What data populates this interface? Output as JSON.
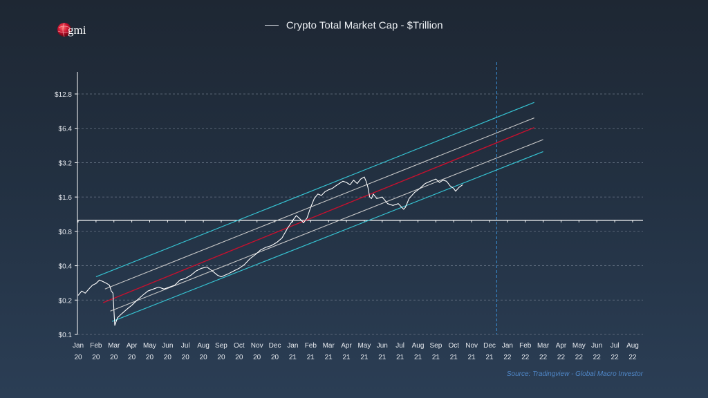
{
  "title": "Crypto Total Market Cap - $Trillion",
  "logo_text": "gmi",
  "source": "Source: Tradingview - Global Macro Investor",
  "colors": {
    "price": "#ffffff",
    "center": "#c8102e",
    "inner_band": "#c9c9c9",
    "outer_band": "#36c2d1",
    "projection_marker": "#3a8fd6",
    "grid": "#6b7788",
    "axis": "#ffffff"
  },
  "chart_data": {
    "type": "line",
    "title": "Crypto Total Market Cap - $Trillion",
    "xlabel": "",
    "ylabel": "",
    "y_scale": "log2",
    "ylim": [
      0.1,
      20
    ],
    "y_ticks": [
      {
        "value": 0.1,
        "label": "$0.1"
      },
      {
        "value": 0.2,
        "label": "$0.2"
      },
      {
        "value": 0.4,
        "label": "$0.4"
      },
      {
        "value": 0.8,
        "label": "$0.8"
      },
      {
        "value": 1.6,
        "label": "$1.6"
      },
      {
        "value": 3.2,
        "label": "$3.2"
      },
      {
        "value": 6.4,
        "label": "$6.4"
      },
      {
        "value": 12.8,
        "label": "$12.8"
      }
    ],
    "x_ticks": [
      [
        "Jan",
        "20"
      ],
      [
        "Feb",
        "20"
      ],
      [
        "Mar",
        "20"
      ],
      [
        "Apr",
        "20"
      ],
      [
        "May",
        "20"
      ],
      [
        "Jun",
        "20"
      ],
      [
        "Jul",
        "20"
      ],
      [
        "Aug",
        "20"
      ],
      [
        "Sep",
        "20"
      ],
      [
        "Oct",
        "20"
      ],
      [
        "Nov",
        "20"
      ],
      [
        "Dec",
        "20"
      ],
      [
        "Jan",
        "21"
      ],
      [
        "Feb",
        "21"
      ],
      [
        "Mar",
        "21"
      ],
      [
        "Apr",
        "21"
      ],
      [
        "May",
        "21"
      ],
      [
        "Jun",
        "21"
      ],
      [
        "Jul",
        "21"
      ],
      [
        "Aug",
        "21"
      ],
      [
        "Sep",
        "21"
      ],
      [
        "Oct",
        "21"
      ],
      [
        "Nov",
        "21"
      ],
      [
        "Dec",
        "21"
      ],
      [
        "Jan",
        "22"
      ],
      [
        "Feb",
        "22"
      ],
      [
        "Mar",
        "22"
      ],
      [
        "Apr",
        "22"
      ],
      [
        "May",
        "22"
      ],
      [
        "Jun",
        "22"
      ],
      [
        "Jul",
        "22"
      ],
      [
        "Aug",
        "22"
      ]
    ],
    "reference_line": 1.0,
    "projection_marker_x": 23.4,
    "grid": true,
    "series": [
      {
        "name": "Crypto Total Market Cap - $Trillion",
        "role": "price",
        "x": [
          0,
          0.2,
          0.4,
          0.6,
          0.8,
          1.0,
          1.2,
          1.4,
          1.6,
          1.75,
          1.85,
          1.95,
          2.05,
          2.2,
          2.4,
          2.6,
          2.8,
          3.0,
          3.3,
          3.6,
          3.9,
          4.2,
          4.5,
          4.8,
          5.1,
          5.4,
          5.7,
          6.0,
          6.3,
          6.6,
          6.9,
          7.2,
          7.5,
          7.8,
          8.0,
          8.2,
          8.4,
          8.7,
          9.0,
          9.3,
          9.6,
          9.9,
          10.2,
          10.5,
          10.8,
          11.1,
          11.4,
          11.7,
          12.0,
          12.2,
          12.4,
          12.6,
          12.8,
          13.0,
          13.2,
          13.4,
          13.6,
          13.8,
          14.0,
          14.2,
          14.4,
          14.6,
          14.8,
          15.0,
          15.2,
          15.4,
          15.6,
          15.8,
          16.0,
          16.1,
          16.2,
          16.3,
          16.4,
          16.5,
          16.7,
          17.0,
          17.3,
          17.6,
          17.9,
          18.2,
          18.3,
          18.5,
          18.8,
          19.1,
          19.4,
          19.7,
          20.0,
          20.2,
          20.4,
          20.6,
          20.8,
          21.0,
          21.1,
          21.3,
          21.5
        ],
        "values": [
          0.22,
          0.24,
          0.23,
          0.25,
          0.27,
          0.28,
          0.3,
          0.29,
          0.28,
          0.27,
          0.24,
          0.23,
          0.12,
          0.14,
          0.15,
          0.16,
          0.17,
          0.18,
          0.2,
          0.22,
          0.24,
          0.25,
          0.26,
          0.25,
          0.26,
          0.27,
          0.3,
          0.31,
          0.33,
          0.36,
          0.38,
          0.39,
          0.36,
          0.33,
          0.32,
          0.33,
          0.34,
          0.36,
          0.38,
          0.41,
          0.46,
          0.5,
          0.55,
          0.58,
          0.6,
          0.64,
          0.7,
          0.85,
          1.0,
          1.1,
          1.03,
          0.95,
          1.05,
          1.3,
          1.55,
          1.7,
          1.65,
          1.78,
          1.85,
          1.9,
          2.0,
          2.1,
          2.2,
          2.15,
          2.05,
          2.25,
          2.1,
          2.3,
          2.4,
          2.2,
          1.95,
          1.6,
          1.55,
          1.7,
          1.55,
          1.6,
          1.4,
          1.35,
          1.4,
          1.25,
          1.3,
          1.55,
          1.75,
          1.9,
          2.1,
          2.2,
          2.3,
          2.15,
          2.25,
          2.2,
          2.0,
          1.9,
          1.8,
          1.95,
          2.05
        ]
      },
      {
        "name": "",
        "role": "upper-outer",
        "x": [
          1.0,
          25.5
        ],
        "values": [
          0.32,
          10.8
        ]
      },
      {
        "name": "",
        "role": "upper-inner",
        "x": [
          1.5,
          25.5
        ],
        "values": [
          0.25,
          7.9
        ]
      },
      {
        "name": "",
        "role": "center",
        "x": [
          1.4,
          25.5
        ],
        "values": [
          0.19,
          6.5
        ]
      },
      {
        "name": "",
        "role": "lower-inner",
        "x": [
          1.8,
          26.0
        ],
        "values": [
          0.16,
          5.1
        ]
      },
      {
        "name": "",
        "role": "lower-outer",
        "x": [
          1.9,
          26.0
        ],
        "values": [
          0.13,
          4.0
        ]
      }
    ]
  }
}
